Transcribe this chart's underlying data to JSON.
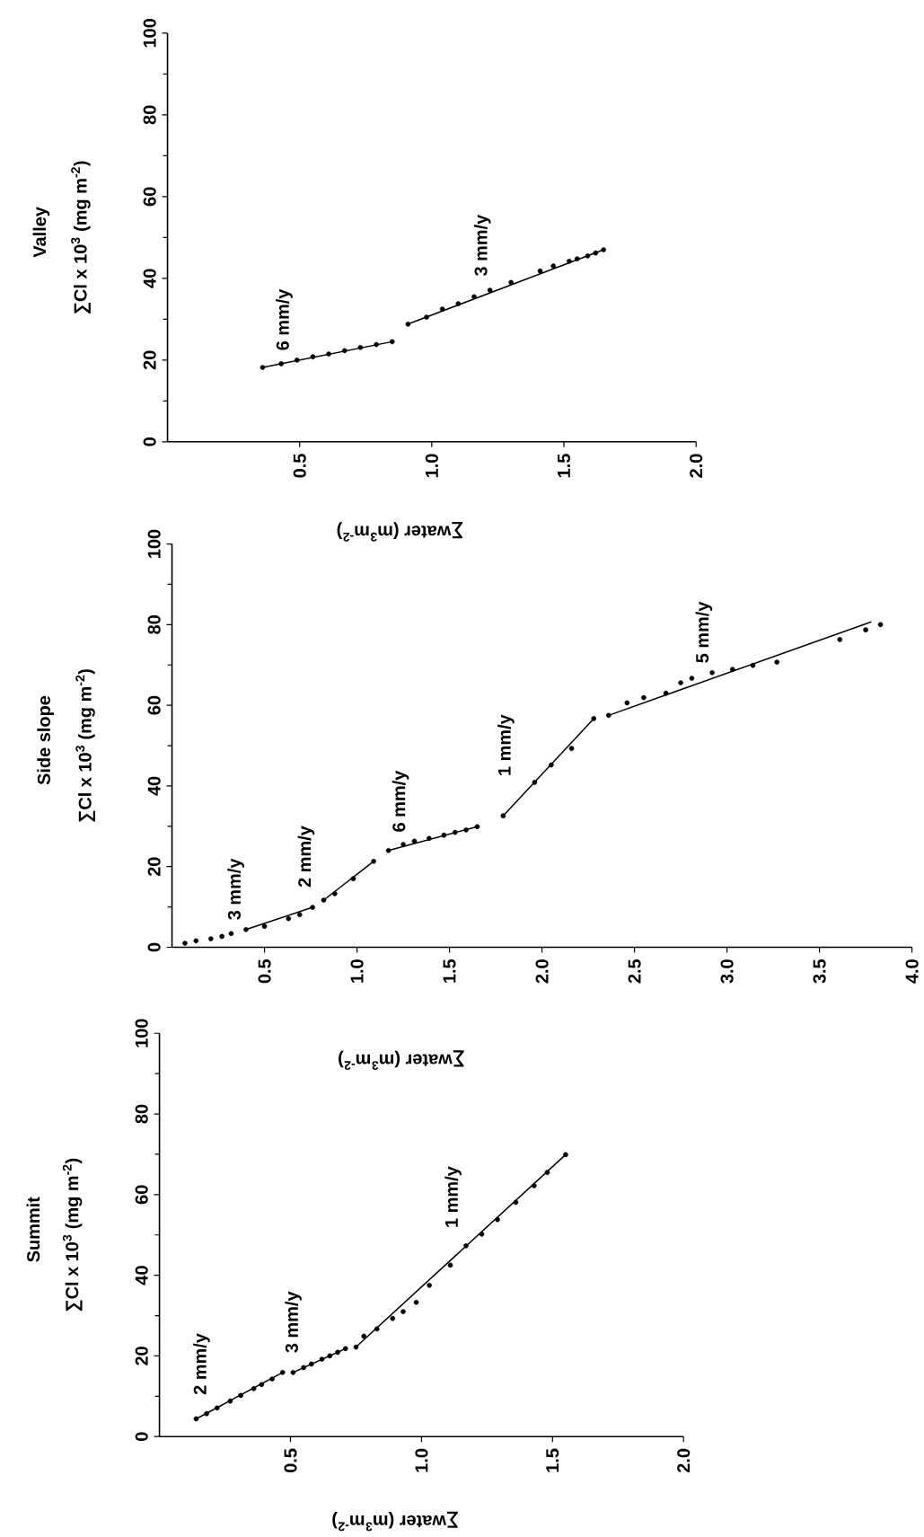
{
  "chart_data": [
    {
      "type": "scatter",
      "title": "Valley",
      "xlabel": "∑water (m$^{3}$m$^{-2}$)",
      "ylabel": "∑Cl x 10$^{3}$ (mg m$^{-2}$)",
      "xlim": [
        0,
        2
      ],
      "ylim": [
        0,
        100
      ],
      "xticks": [
        0.5,
        {
          "value": 1,
          "label": "1.0"
        },
        1.5,
        {
          "value": 2,
          "label": "2.0"
        }
      ],
      "yticks": [
        0,
        20,
        40,
        60,
        80,
        100
      ],
      "marker": "circle",
      "series": [
        {
          "color": "#000000",
          "x": [
            0.36,
            0.43,
            0.49,
            0.55,
            0.61,
            0.67,
            0.73,
            0.79,
            0.85,
            0.91,
            0.98,
            1.04,
            1.1,
            1.16,
            1.22,
            1.3,
            1.41,
            1.46,
            1.52,
            1.55,
            1.59,
            1.62,
            1.65
          ],
          "values": [
            18.2,
            19.1,
            20.0,
            20.8,
            21.5,
            22.3,
            23.1,
            23.8,
            24.5,
            28.8,
            30.5,
            32.5,
            33.8,
            35.5,
            37.1,
            39.0,
            41.8,
            43.0,
            44.2,
            44.8,
            45.5,
            46.2,
            47.0
          ]
        },
        {
          "type": "line",
          "marker": "none",
          "color": "#000000",
          "x": [
            0.36,
            0.85
          ],
          "values": [
            18.2,
            24.5
          ]
        },
        {
          "type": "line",
          "marker": "none",
          "color": "#000000",
          "x": [
            0.91,
            1.65
          ],
          "values": [
            28.8,
            47.0
          ]
        }
      ],
      "annotations": [
        {
          "text": "6 mm/y",
          "x": 0.55,
          "y": 20.8
        },
        {
          "text": "3 mm/y",
          "x": 1.3,
          "y": 39.0
        }
      ]
    },
    {
      "type": "scatter",
      "title": "Side slope",
      "xlabel": "∑water (m$^{3}$m$^{-2}$)",
      "ylabel": "∑Cl x 10$^{3}$ (mg m$^{-2}$)",
      "xlim": [
        0,
        4
      ],
      "ylim": [
        0,
        100
      ],
      "xticks": [
        0.5,
        {
          "value": 1,
          "label": "1.0"
        },
        1.5,
        {
          "value": 2,
          "label": "2.0"
        },
        2.5,
        {
          "value": 3,
          "label": "3.0"
        },
        3.5,
        {
          "value": 4,
          "label": "4.0"
        }
      ],
      "yticks": [
        0,
        20,
        40,
        60,
        80,
        100
      ],
      "marker": "circle",
      "series": [
        {
          "color": "#000000",
          "x": [
            0.07,
            0.13,
            0.21,
            0.27,
            0.32,
            0.4,
            0.5,
            0.63,
            0.69,
            0.76,
            0.82,
            0.88,
            0.98,
            1.09,
            1.17,
            1.25,
            1.31,
            1.39,
            1.47,
            1.53,
            1.59,
            1.65,
            1.79,
            1.96,
            2.05,
            2.16,
            2.28,
            2.36,
            2.46,
            2.55,
            2.67,
            2.75,
            2.81,
            2.92,
            3.03,
            3.14,
            3.27,
            3.61,
            3.75,
            3.83
          ],
          "values": [
            1.0,
            1.6,
            2.1,
            2.7,
            3.4,
            4.4,
            5.2,
            7.1,
            8.1,
            9.9,
            11.7,
            13.3,
            17.0,
            21.3,
            24.0,
            25.5,
            26.3,
            27.0,
            27.8,
            28.5,
            29.1,
            29.9,
            32.6,
            40.9,
            45.2,
            49.3,
            56.7,
            57.5,
            60.6,
            61.9,
            63.0,
            65.6,
            66.7,
            68.1,
            68.9,
            69.9,
            70.7,
            76.3,
            78.7,
            80.0
          ]
        },
        {
          "type": "line",
          "marker": "none",
          "color": "#000000",
          "x": [
            0.4,
            0.76
          ],
          "values": [
            4.4,
            9.9
          ]
        },
        {
          "type": "line",
          "marker": "none",
          "color": "#000000",
          "x": [
            0.82,
            1.09
          ],
          "values": [
            11.7,
            21.3
          ]
        },
        {
          "type": "line",
          "marker": "none",
          "color": "#000000",
          "x": [
            1.17,
            1.65
          ],
          "values": [
            24.0,
            29.9
          ]
        },
        {
          "type": "line",
          "marker": "none",
          "color": "#000000",
          "x": [
            1.79,
            2.28
          ],
          "values": [
            32.6,
            56.7
          ]
        },
        {
          "type": "line",
          "marker": "none",
          "color": "#000000",
          "x": [
            2.36,
            3.78
          ],
          "values": [
            57.5,
            80.7
          ]
        }
      ],
      "annotations": [
        {
          "text": "3 mm/y",
          "x": 0.5,
          "y": 5.2
        },
        {
          "text": "2 mm/y",
          "x": 0.88,
          "y": 13.3
        },
        {
          "text": "6 mm/y",
          "x": 1.39,
          "y": 27.0
        },
        {
          "text": "1 mm/y",
          "x": 1.96,
          "y": 40.9
        },
        {
          "text": "5 mm/y",
          "x": 3.03,
          "y": 68.9
        }
      ]
    },
    {
      "type": "scatter",
      "title": "Summit",
      "xlabel": "∑water (m$^{3}$m$^{-2}$)",
      "ylabel": "∑Cl x 10$^{3}$ (mg m$^{-2}$)",
      "xlim": [
        0,
        2
      ],
      "ylim": [
        0,
        100
      ],
      "xticks": [
        0.5,
        {
          "value": 1,
          "label": "1.0"
        },
        1.5,
        {
          "value": 2,
          "label": "2.0"
        }
      ],
      "yticks": [
        0,
        20,
        40,
        60,
        80,
        100
      ],
      "marker": "circle",
      "series": [
        {
          "color": "#000000",
          "x": [
            0.14,
            0.18,
            0.22,
            0.27,
            0.31,
            0.36,
            0.39,
            0.43,
            0.47,
            0.51,
            0.55,
            0.58,
            0.62,
            0.65,
            0.68,
            0.71,
            0.75,
            0.78,
            0.83,
            0.89,
            0.93,
            0.98,
            1.03,
            1.11,
            1.17,
            1.23,
            1.29,
            1.36,
            1.43,
            1.48,
            1.55
          ],
          "values": [
            4.4,
            5.7,
            7.1,
            8.8,
            10.2,
            11.9,
            12.9,
            14.3,
            15.9,
            15.9,
            17.1,
            18.0,
            19.2,
            20.0,
            20.9,
            21.8,
            22.2,
            24.9,
            26.7,
            29.3,
            31.0,
            33.3,
            37.5,
            42.5,
            47.3,
            50.2,
            53.8,
            58.1,
            62.2,
            65.5,
            69.9
          ]
        },
        {
          "type": "line",
          "marker": "none",
          "color": "#000000",
          "x": [
            0.14,
            0.47
          ],
          "values": [
            4.4,
            15.9
          ]
        },
        {
          "type": "line",
          "marker": "none",
          "color": "#000000",
          "x": [
            0.51,
            0.71
          ],
          "values": [
            15.9,
            21.8
          ]
        },
        {
          "type": "line",
          "marker": "none",
          "color": "#000000",
          "x": [
            0.75,
            1.55
          ],
          "values": [
            22.2,
            69.9
          ]
        }
      ],
      "annotations": [
        {
          "text": "2 mm/y",
          "x": 0.27,
          "y": 8.8
        },
        {
          "text": "3 mm/y",
          "x": 0.62,
          "y": 19.2
        },
        {
          "text": "1 mm/y",
          "x": 1.23,
          "y": 50.2
        }
      ]
    }
  ]
}
